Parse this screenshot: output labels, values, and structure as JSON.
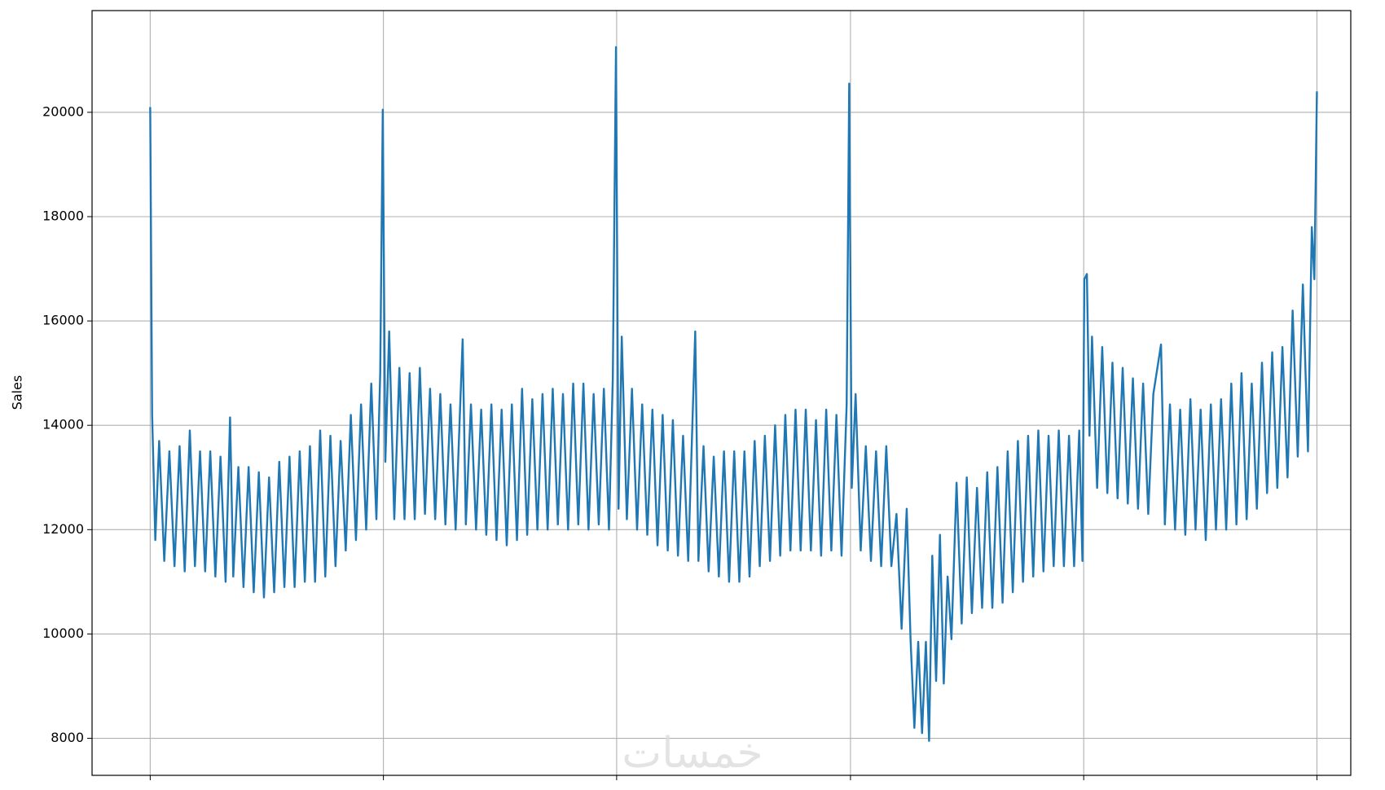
{
  "chart_data": {
    "type": "line",
    "y_label": "Sales",
    "watermark": "خمسات",
    "xlim": [
      -91,
      1879
    ],
    "xticks": [
      0,
      365,
      730,
      1096,
      1461,
      1826
    ],
    "ylim": [
      7290,
      21950
    ],
    "yticks": [
      8000,
      10000,
      12000,
      14000,
      16000,
      18000,
      20000
    ],
    "grid": true,
    "x": [
      0,
      3,
      8,
      14,
      22,
      30,
      38,
      46,
      54,
      62,
      70,
      78,
      86,
      94,
      102,
      110,
      118,
      125,
      130,
      138,
      146,
      154,
      162,
      170,
      178,
      186,
      194,
      202,
      210,
      218,
      226,
      234,
      242,
      250,
      258,
      266,
      274,
      282,
      290,
      298,
      306,
      314,
      322,
      330,
      338,
      346,
      354,
      360,
      364,
      368,
      374,
      382,
      390,
      398,
      406,
      414,
      422,
      430,
      438,
      446,
      454,
      462,
      470,
      478,
      489,
      494,
      502,
      510,
      518,
      526,
      534,
      542,
      550,
      558,
      566,
      574,
      582,
      590,
      598,
      606,
      614,
      622,
      630,
      638,
      646,
      654,
      662,
      670,
      678,
      686,
      694,
      702,
      710,
      718,
      724,
      729,
      733,
      738,
      746,
      754,
      762,
      770,
      778,
      786,
      794,
      802,
      810,
      818,
      826,
      834,
      842,
      853,
      858,
      866,
      874,
      882,
      890,
      898,
      906,
      914,
      922,
      930,
      938,
      946,
      954,
      962,
      970,
      978,
      986,
      994,
      1002,
      1010,
      1018,
      1026,
      1034,
      1042,
      1050,
      1058,
      1066,
      1074,
      1082,
      1090,
      1094,
      1098,
      1104,
      1112,
      1120,
      1128,
      1136,
      1144,
      1152,
      1160,
      1168,
      1176,
      1184,
      1190,
      1196,
      1202,
      1208,
      1214,
      1219,
      1224,
      1230,
      1236,
      1242,
      1248,
      1254,
      1262,
      1270,
      1278,
      1286,
      1294,
      1302,
      1310,
      1318,
      1326,
      1334,
      1342,
      1350,
      1358,
      1366,
      1374,
      1382,
      1390,
      1398,
      1406,
      1414,
      1422,
      1430,
      1438,
      1446,
      1454,
      1459,
      1462,
      1466,
      1470,
      1474,
      1482,
      1490,
      1498,
      1506,
      1514,
      1522,
      1530,
      1538,
      1546,
      1554,
      1562,
      1570,
      1582,
      1588,
      1596,
      1604,
      1612,
      1620,
      1628,
      1636,
      1644,
      1652,
      1660,
      1668,
      1676,
      1684,
      1692,
      1700,
      1708,
      1716,
      1724,
      1732,
      1740,
      1748,
      1756,
      1764,
      1772,
      1780,
      1788,
      1796,
      1804,
      1812,
      1818,
      1822,
      1826
    ],
    "series": [
      {
        "name": "Sales",
        "color": "#1f77b4",
        "values": [
          20100,
          14200,
          11800,
          13700,
          11400,
          13500,
          11300,
          13600,
          11200,
          13900,
          11300,
          13500,
          11200,
          13500,
          11100,
          13400,
          11000,
          14150,
          11100,
          13200,
          10900,
          13200,
          10800,
          13100,
          10700,
          13000,
          10800,
          13300,
          10900,
          13400,
          10900,
          13500,
          11000,
          13600,
          11000,
          13900,
          11100,
          13800,
          11300,
          13700,
          11600,
          14200,
          11800,
          14400,
          12000,
          14800,
          12200,
          15000,
          20050,
          13300,
          15800,
          12200,
          15100,
          12200,
          15000,
          12200,
          15100,
          12300,
          14700,
          12200,
          14600,
          12100,
          14400,
          12000,
          15650,
          12100,
          14400,
          12000,
          14300,
          11900,
          14400,
          11800,
          14300,
          11700,
          14400,
          11800,
          14700,
          11900,
          14500,
          12000,
          14600,
          12000,
          14700,
          12100,
          14600,
          12000,
          14800,
          12100,
          14800,
          12000,
          14600,
          12100,
          14700,
          12000,
          14900,
          21250,
          12400,
          15700,
          12200,
          14700,
          12000,
          14400,
          11900,
          14300,
          11700,
          14200,
          11600,
          14100,
          11500,
          13800,
          11400,
          15800,
          11400,
          13600,
          11200,
          13400,
          11100,
          13500,
          11000,
          13500,
          11000,
          13500,
          11100,
          13700,
          11300,
          13800,
          11400,
          14000,
          11500,
          14200,
          11600,
          14300,
          11600,
          14300,
          11600,
          14100,
          11500,
          14300,
          11600,
          14200,
          11500,
          14400,
          20550,
          12800,
          14600,
          11600,
          13600,
          11400,
          13500,
          11300,
          13600,
          11300,
          12300,
          10100,
          12400,
          9900,
          8200,
          9850,
          8100,
          9850,
          7950,
          11500,
          9100,
          11900,
          9050,
          11100,
          9900,
          12900,
          10200,
          13000,
          10400,
          12800,
          10500,
          13100,
          10500,
          13200,
          10600,
          13500,
          10800,
          13700,
          11000,
          13800,
          11100,
          13900,
          11200,
          13800,
          11300,
          13900,
          11300,
          13800,
          11300,
          13900,
          11400,
          16800,
          16900,
          13800,
          15700,
          12800,
          15500,
          12700,
          15200,
          12600,
          15100,
          12500,
          14900,
          12400,
          14800,
          12300,
          14600,
          15550,
          12100,
          14400,
          12000,
          14300,
          11900,
          14500,
          12000,
          14300,
          11800,
          14400,
          12000,
          14500,
          12000,
          14800,
          12100,
          15000,
          12200,
          14800,
          12400,
          15200,
          12700,
          15400,
          12800,
          15500,
          13000,
          16200,
          13400,
          16700,
          13500,
          17800,
          16800,
          20400
        ]
      }
    ]
  }
}
